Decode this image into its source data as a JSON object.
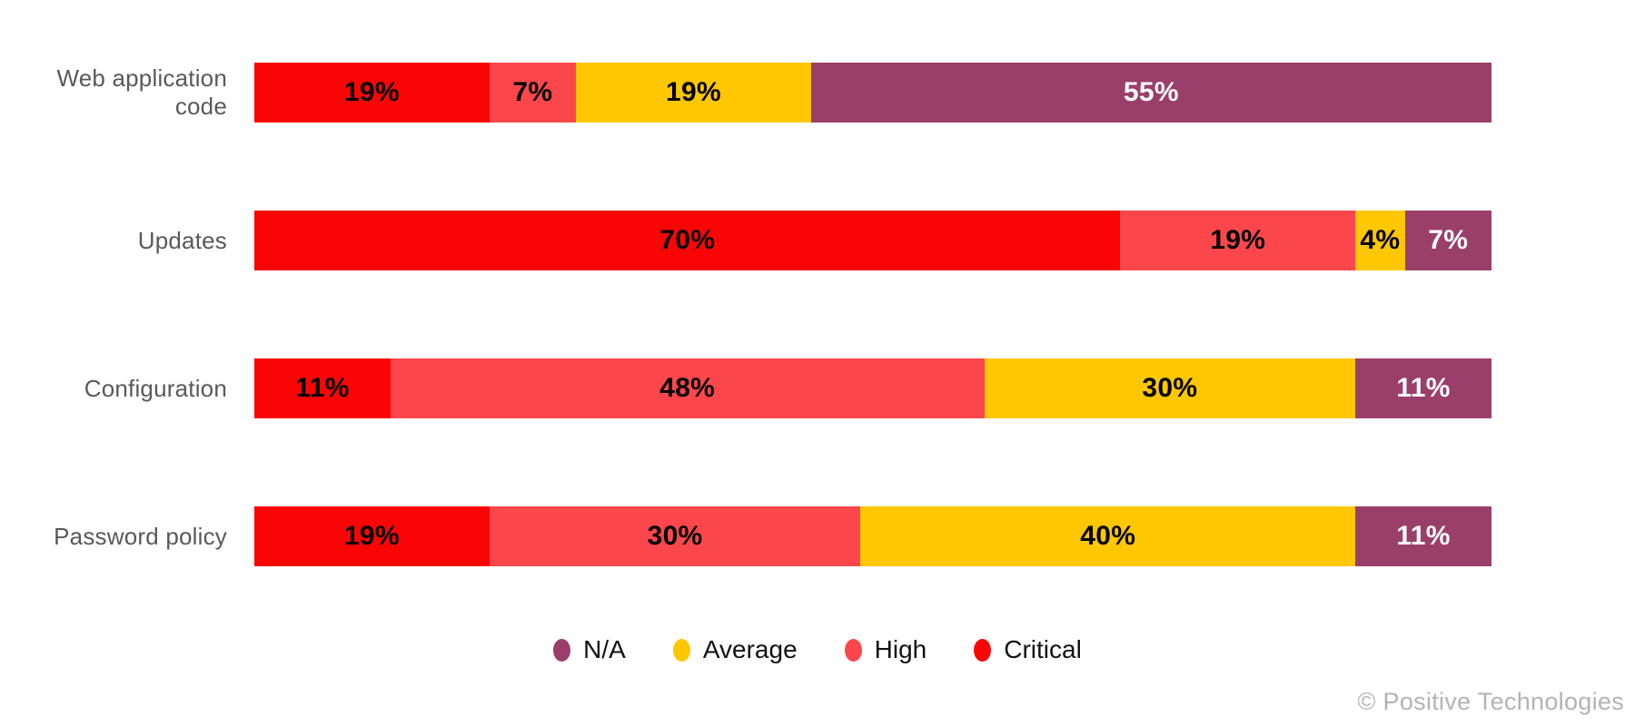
{
  "chart_data": {
    "type": "bar",
    "variant": "horizontal-stacked",
    "categories": [
      "Web application code",
      "Updates",
      "Configuration",
      "Password policy"
    ],
    "series": [
      {
        "name": "Critical",
        "color": "#fa0505",
        "label_color": "#000000",
        "values": [
          19,
          70,
          11,
          19
        ]
      },
      {
        "name": "High",
        "color": "#fb474b",
        "label_color": "#000000",
        "values": [
          7,
          19,
          48,
          30
        ]
      },
      {
        "name": "Average",
        "color": "#ffc701",
        "label_color": "#000000",
        "values": [
          19,
          4,
          30,
          40
        ]
      },
      {
        "name": "N/A",
        "color": "#9a3e6a",
        "label_color": "#ffffff",
        "values": [
          55,
          7,
          11,
          11
        ]
      }
    ],
    "value_suffix": "%",
    "xlim": [
      0,
      100
    ],
    "grid": false,
    "axis_labels_visible": false,
    "legend_position": "bottom-center",
    "legend_order": [
      "N/A",
      "Average",
      "High",
      "Critical"
    ],
    "category_label_color": "#595959",
    "title": "",
    "xlabel": "",
    "ylabel": ""
  },
  "footer": {
    "copyright": "© Positive Technologies"
  }
}
